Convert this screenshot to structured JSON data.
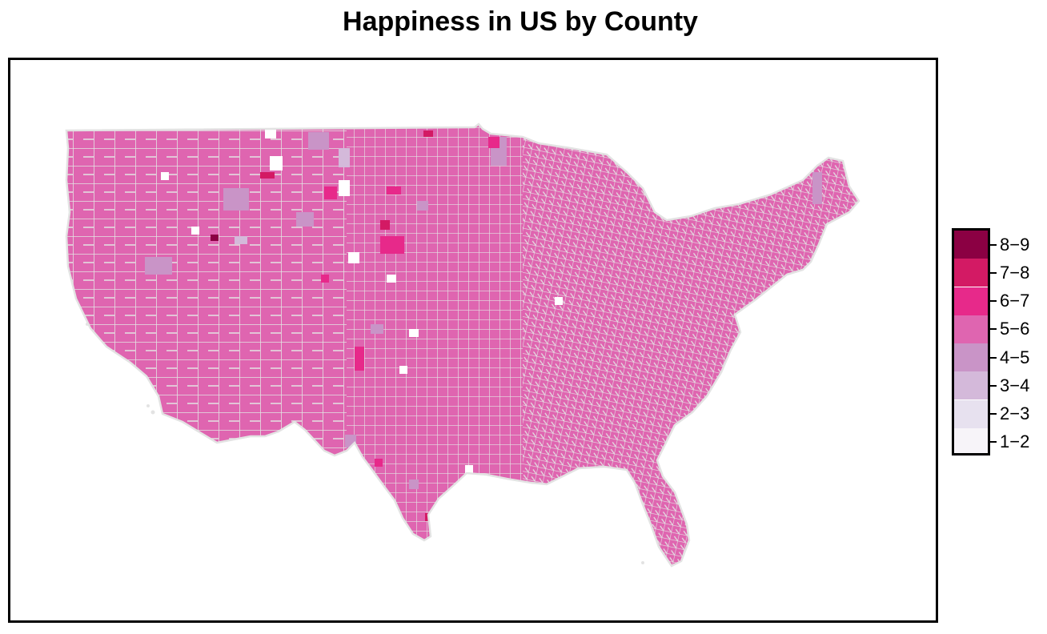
{
  "title": "Happiness in US by County",
  "legend": {
    "bins": [
      {
        "label": "8−9",
        "color": "#8b0043"
      },
      {
        "label": "7−8",
        "color": "#d31a64"
      },
      {
        "label": "6−7",
        "color": "#e7298a"
      },
      {
        "label": "5−6",
        "color": "#df65b0"
      },
      {
        "label": "4−5",
        "color": "#c994c7"
      },
      {
        "label": "3−4",
        "color": "#d4b9da"
      },
      {
        "label": "2−3",
        "color": "#e7e1ef"
      },
      {
        "label": "1−2",
        "color": "#f7f4f9"
      }
    ]
  },
  "colors": {
    "dominant_fill": "#df65b0",
    "county_border": "#e3e3e3",
    "panel_border": "#000000"
  }
}
